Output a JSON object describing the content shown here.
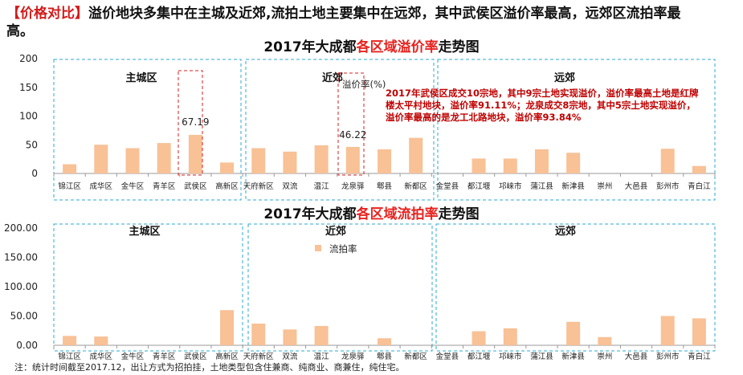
{
  "headline": {
    "tag": "【价格对比】",
    "text": "溢价地块多集中在主城及近郊,流拍土地主要集中在远郊，其中武侯区溢价率最高，远郊区流拍率最高。"
  },
  "chart1_title": {
    "pre": "2017年大成都",
    "highlight": "各区域溢价率",
    "post": "走势图"
  },
  "chart2_title": {
    "pre": "2017年大成都",
    "highlight": "各区域流拍率",
    "post": "走势图"
  },
  "note": "注：统计时间截至2017.12，出让方式为招拍挂，土地类型包含住兼商、纯商业、商兼住，纯住宅。",
  "colors": {
    "bar": "#f8c196",
    "frame": "#2ea8d6",
    "highlight_box": "#d62020",
    "annotation": "#c00000"
  },
  "chart_data": [
    {
      "type": "bar",
      "title": "2017年大成都各区域溢价率走势图",
      "categories": [
        "锦江区",
        "成华区",
        "金牛区",
        "青羊区",
        "武侯区",
        "高新区",
        "天府新区",
        "双流",
        "温江",
        "龙泉驿",
        "郫县",
        "新都区",
        "金堂县",
        "都江堰",
        "邛崃市",
        "蒲江县",
        "新津县",
        "崇州",
        "大邑县",
        "彭州市",
        "青白江"
      ],
      "series": [
        {
          "name": "溢价率(%)",
          "values": [
            16,
            50,
            44,
            53,
            67.19,
            19,
            44,
            38,
            49,
            46.22,
            42,
            62,
            null,
            26,
            26,
            42,
            36,
            null,
            null,
            43,
            13
          ]
        }
      ],
      "ylim": [
        0,
        200
      ],
      "yticks": [
        "0",
        "50",
        "100",
        "150",
        "200"
      ],
      "legend": "溢价率(%)",
      "data_labels": [
        {
          "category": "武侯区",
          "text": "67.19"
        },
        {
          "category": "龙泉驿",
          "text": "46.22"
        }
      ],
      "groups": [
        "主城区",
        "近郊",
        "远郊"
      ],
      "annotation": [
        "2017年武侯区成交10宗地，其中9宗土地实现溢价，溢价率最高土地是红牌",
        "楼太平村地块，溢价率91.11%；龙泉成交8宗地，其中5宗土地实现溢价，",
        "溢价率最高的是龙工北路地块，溢价率93.84%"
      ]
    },
    {
      "type": "bar",
      "title": "2017年大成都各区域流拍率走势图",
      "categories": [
        "锦江区",
        "成华区",
        "金牛区",
        "青羊区",
        "武侯区",
        "高新区",
        "天府新区",
        "双流",
        "温江",
        "龙泉驿",
        "郫县",
        "新都区",
        "金堂县",
        "都江堰",
        "邛崃市",
        "蒲江县",
        "新津县",
        "崇州",
        "大邑县",
        "彭州市",
        "青白江"
      ],
      "series": [
        {
          "name": "流拍率",
          "values": [
            16,
            15,
            null,
            null,
            null,
            60,
            37,
            27,
            33,
            null,
            12,
            null,
            null,
            24,
            29,
            null,
            40,
            14,
            null,
            50,
            46
          ]
        }
      ],
      "ylim": [
        0,
        200
      ],
      "yticks": [
        "0.00",
        "50.00",
        "100.00",
        "150.00",
        "200.00"
      ],
      "legend": "流拍率",
      "groups": [
        "主城区",
        "近郊",
        "远郊"
      ]
    }
  ]
}
